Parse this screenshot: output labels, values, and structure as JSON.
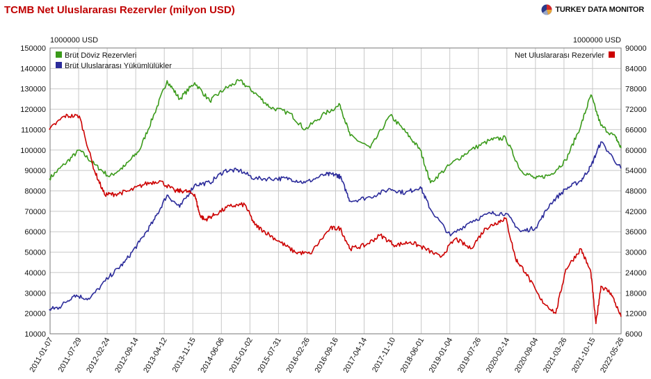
{
  "title": "TCMB Net Uluslararası Rezervler (milyon USD)",
  "brand": {
    "name": "TURKEY DATA MONITOR",
    "logo_icon": "pie-globe-icon"
  },
  "chart_data": {
    "type": "line",
    "left_unit": "1000000 USD",
    "right_unit": "1000000 USD",
    "ylim_left": [
      10000,
      150000
    ],
    "ylim_right": [
      6000,
      90000
    ],
    "y_ticks_left": [
      "150000",
      "140000",
      "130000",
      "120000",
      "110000",
      "100000",
      "90000",
      "80000",
      "70000",
      "60000",
      "50000",
      "40000",
      "30000",
      "20000",
      "10000"
    ],
    "y_ticks_right": [
      "90000",
      "84000",
      "78000",
      "72000",
      "66000",
      "60000",
      "54000",
      "48000",
      "42000",
      "36000",
      "30000",
      "24000",
      "18000",
      "12000",
      "6000"
    ],
    "x_ticks": [
      "2011-01-07",
      "2011-07-29",
      "2012-02-24",
      "2012-09-14",
      "2013-04-12",
      "2013-11-15",
      "2014-06-06",
      "2015-01-02",
      "2015-07-31",
      "2016-02-26",
      "2016-09-16",
      "2017-04-14",
      "2017-11-10",
      "2018-06-01",
      "2019-01-04",
      "2019-07-26",
      "2020-02-14",
      "2020-09-04",
      "2021-03-26",
      "2021-10-15",
      "2022-05-26"
    ],
    "grid": true,
    "series": [
      {
        "name": "Brüt Döviz Rezervleri",
        "axis": "left",
        "color": "#3a9a1a",
        "x": [
          2011.0,
          2011.3,
          2011.6,
          2011.9,
          2012.2,
          2012.5,
          2012.8,
          2013.1,
          2013.35,
          2013.6,
          2013.9,
          2014.2,
          2014.5,
          2014.8,
          2015.1,
          2015.4,
          2015.8,
          2016.1,
          2016.5,
          2016.8,
          2017.0,
          2017.4,
          2017.8,
          2018.1,
          2018.4,
          2018.6,
          2019.0,
          2019.4,
          2019.8,
          2020.1,
          2020.4,
          2020.7,
          2021.0,
          2021.3,
          2021.6,
          2021.8,
          2022.0,
          2022.3,
          2022.4
        ],
        "y": [
          86000,
          93000,
          100000,
          93000,
          87000,
          92000,
          100000,
          118000,
          134000,
          125000,
          133000,
          124000,
          130000,
          134000,
          128000,
          121000,
          118000,
          110000,
          118000,
          122000,
          107000,
          101000,
          117000,
          109000,
          100000,
          84000,
          93000,
          100000,
          105000,
          106000,
          90000,
          86000,
          88000,
          95000,
          112000,
          127000,
          112000,
          106000,
          101000
        ]
      },
      {
        "name": "Brüt Uluslararası Yükümlülükler",
        "axis": "left",
        "color": "#2b2b9a",
        "x": [
          2011.0,
          2011.2,
          2011.5,
          2011.8,
          2012.2,
          2012.5,
          2012.8,
          2013.1,
          2013.35,
          2013.6,
          2013.9,
          2014.2,
          2014.5,
          2014.8,
          2015.1,
          2015.5,
          2015.8,
          2016.1,
          2016.5,
          2016.7,
          2016.8,
          2017.0,
          2017.4,
          2017.8,
          2018.1,
          2018.4,
          2018.6,
          2019.0,
          2019.4,
          2019.8,
          2020.1,
          2020.4,
          2020.7,
          2021.0,
          2021.3,
          2021.6,
          2021.8,
          2022.0,
          2022.4
        ],
        "y": [
          22000,
          23000,
          29000,
          27000,
          38000,
          45000,
          55000,
          66000,
          78000,
          72000,
          83000,
          84000,
          90000,
          90000,
          86000,
          86000,
          86000,
          84000,
          88000,
          88000,
          87000,
          75000,
          77000,
          81000,
          79000,
          82000,
          71000,
          58000,
          65000,
          69000,
          69000,
          60000,
          62000,
          74000,
          81000,
          85000,
          92000,
          104000,
          91000
        ]
      },
      {
        "name": "Net Uluslararası Rezervler",
        "axis": "right",
        "color": "#cc0000",
        "x": [
          2011.0,
          2011.3,
          2011.6,
          2011.9,
          2012.1,
          2012.3,
          2012.6,
          2012.9,
          2013.2,
          2013.5,
          2013.7,
          2013.9,
          2014.0,
          2014.1,
          2014.3,
          2014.6,
          2014.9,
          2015.1,
          2015.3,
          2015.6,
          2015.9,
          2016.2,
          2016.6,
          2016.8,
          2017.0,
          2017.3,
          2017.6,
          2017.9,
          2018.2,
          2018.5,
          2018.8,
          2019.1,
          2019.4,
          2019.7,
          2019.9,
          2020.1,
          2020.3,
          2020.5,
          2020.8,
          2021.1,
          2021.3,
          2021.6,
          2021.8,
          2021.9,
          2022.0,
          2022.2,
          2022.4
        ],
        "y": [
          66000,
          70000,
          70000,
          54000,
          47000,
          47000,
          48000,
          50000,
          51000,
          48000,
          48000,
          47000,
          41000,
          39500,
          41000,
          43500,
          44000,
          38000,
          36000,
          33000,
          30000,
          29500,
          37000,
          37000,
          31000,
          32000,
          35000,
          32000,
          33000,
          31000,
          28500,
          34000,
          31000,
          37000,
          38500,
          40000,
          28000,
          24000,
          16000,
          12000,
          25000,
          31000,
          24000,
          9000,
          20000,
          18000,
          11000
        ]
      }
    ]
  }
}
